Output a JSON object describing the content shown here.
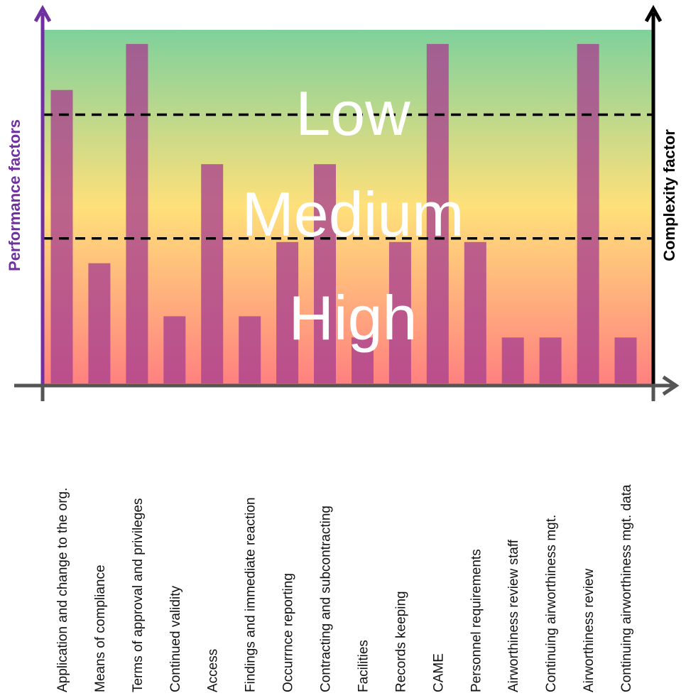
{
  "chart_data": {
    "type": "bar",
    "ylabel": "Performance factors",
    "y2label": "Complexity factor",
    "ylim": [
      0,
      10
    ],
    "categories": [
      "Application and change to the org.",
      "Means of compliance",
      "Terms of approval and privileges",
      "Continued validity",
      "Access",
      "Findings and immediate reaction",
      "Occurrnce reporting",
      "Contracting and subcontracting",
      "Facilities",
      "Records keeping",
      "CAME",
      "Personnel requirements",
      "Airworthiness review staff",
      "Continuing airworthiness mgt.",
      "Airworthiness review",
      "Continuing airworthiness mgt. data"
    ],
    "values": [
      8.3,
      3.4,
      9.6,
      1.9,
      6.2,
      1.9,
      4.0,
      6.2,
      1.3,
      4.0,
      9.6,
      4.0,
      1.3,
      1.3,
      9.6,
      1.3
    ],
    "zones": [
      {
        "label": "Low",
        "from": 7.6,
        "to": 10
      },
      {
        "label": "Medium",
        "from": 4.1,
        "to": 7.6
      },
      {
        "label": "High",
        "from": 0,
        "to": 4.1
      }
    ],
    "thresholds": [
      7.6,
      4.1
    ],
    "colors": {
      "bar": "#a8408f",
      "background_top": "#7fd19c",
      "background_middle": "#ffe07a",
      "background_bottom": "#ff8080",
      "left_axis": "#7030a0",
      "right_axis": "#000000",
      "x_axis": "#555555",
      "threshold_line": "#000000"
    },
    "grid": false,
    "legend": "none"
  }
}
